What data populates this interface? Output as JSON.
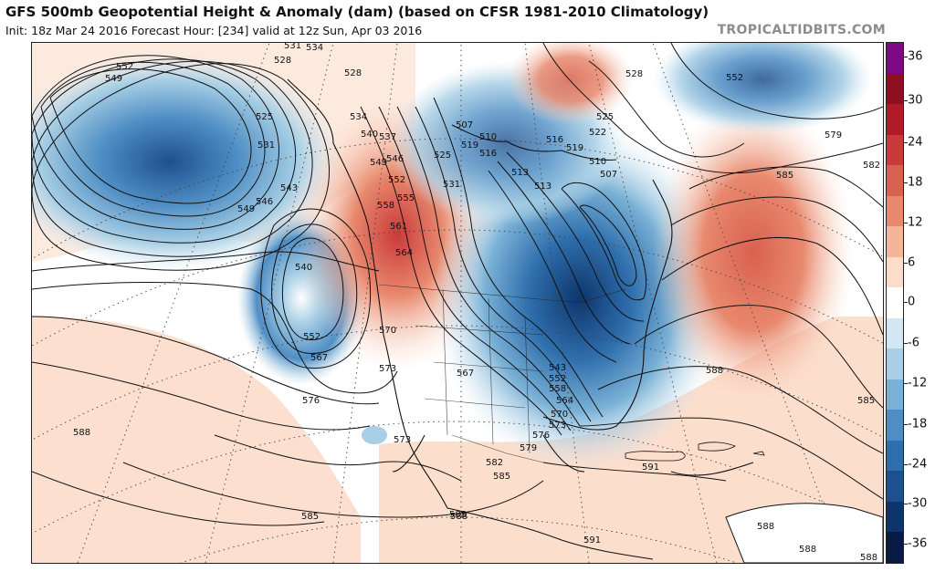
{
  "header": {
    "title": "GFS 500mb Geopotential Height & Anomaly (dam) (based on CFSR 1981-2010 Climatology)",
    "subtitle": "Init: 18z Mar 24 2016   Forecast Hour: [234]   valid at 12z Sun, Apr 03 2016",
    "brand": "TROPICALTIDBITS.COM"
  },
  "colorbar": {
    "ticks": [
      "36",
      "30",
      "24",
      "18",
      "12",
      "6",
      "0",
      "-6",
      "-12",
      "-18",
      "-24",
      "-30",
      "-36"
    ],
    "colors": [
      "#7b0a84",
      "#8e1020",
      "#b01a26",
      "#c93a3a",
      "#d9614f",
      "#e8896e",
      "#f5b598",
      "#fcdcca",
      "#ffffff",
      "#d3e7f2",
      "#a8cfe5",
      "#7ab1d6",
      "#4f8ec4",
      "#2f6eac",
      "#1c508e",
      "#0e356b",
      "#071a44"
    ]
  },
  "contour_labels": [
    {
      "text": "531"
    },
    {
      "text": "534"
    },
    {
      "text": "528"
    },
    {
      "text": "528"
    },
    {
      "text": "552"
    },
    {
      "text": "549"
    },
    {
      "text": "525"
    },
    {
      "text": "531"
    },
    {
      "text": "534"
    },
    {
      "text": "540"
    },
    {
      "text": "537"
    },
    {
      "text": "546"
    },
    {
      "text": "549"
    },
    {
      "text": "552"
    },
    {
      "text": "555"
    },
    {
      "text": "543"
    },
    {
      "text": "546"
    },
    {
      "text": "549"
    },
    {
      "text": "558"
    },
    {
      "text": "561"
    },
    {
      "text": "564"
    },
    {
      "text": "540"
    },
    {
      "text": "552"
    },
    {
      "text": "567"
    },
    {
      "text": "570"
    },
    {
      "text": "573"
    },
    {
      "text": "576"
    },
    {
      "text": "567"
    },
    {
      "text": "573"
    },
    {
      "text": "588"
    },
    {
      "text": "585"
    },
    {
      "text": "588"
    },
    {
      "text": "582"
    },
    {
      "text": "585"
    },
    {
      "text": "579"
    },
    {
      "text": "576"
    },
    {
      "text": "573"
    },
    {
      "text": "570"
    },
    {
      "text": "564"
    },
    {
      "text": "558"
    },
    {
      "text": "552"
    },
    {
      "text": "543"
    },
    {
      "text": "507"
    },
    {
      "text": "519"
    },
    {
      "text": "510"
    },
    {
      "text": "516"
    },
    {
      "text": "525"
    },
    {
      "text": "531"
    },
    {
      "text": "513"
    },
    {
      "text": "513"
    },
    {
      "text": "516"
    },
    {
      "text": "519"
    },
    {
      "text": "510"
    },
    {
      "text": "507"
    },
    {
      "text": "522"
    },
    {
      "text": "525"
    },
    {
      "text": "528"
    },
    {
      "text": "552"
    },
    {
      "text": "579"
    },
    {
      "text": "582"
    },
    {
      "text": "585"
    },
    {
      "text": "588"
    },
    {
      "text": "585"
    },
    {
      "text": "591"
    },
    {
      "text": "588"
    },
    {
      "text": "591"
    },
    {
      "text": "588"
    },
    {
      "text": "588"
    },
    {
      "text": "588"
    }
  ]
}
